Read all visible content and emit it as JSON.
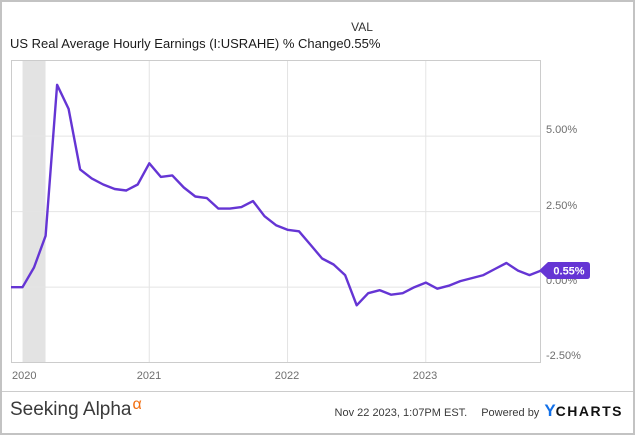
{
  "header": {
    "title": "US Real Average Hourly Earnings (I:USRAHE) % Change",
    "val_label": "VAL",
    "val_value": "0.55%"
  },
  "chart_data": {
    "type": "line",
    "title": "US Real Average Hourly Earnings (I:USRAHE) % Change",
    "ylabel": "",
    "xlabel": "",
    "unit": "%",
    "grid": true,
    "legend_position": "none",
    "line_color": "#6535d4",
    "recession_band": {
      "from": "2020-02",
      "to": "2020-04",
      "from_index": 1,
      "to_index": 3,
      "color": "#e3e3e3"
    },
    "ylim": [
      -2.51,
      7.52
    ],
    "yticks": [
      {
        "value": 5.0,
        "label": "5.00%"
      },
      {
        "value": 2.5,
        "label": "2.50%"
      },
      {
        "value": 0.0,
        "label": "0.00%"
      },
      {
        "value": -2.5,
        "label": "-2.50%"
      }
    ],
    "xticks": [
      {
        "index": 0,
        "label": "2020"
      },
      {
        "index": 12,
        "label": "2021"
      },
      {
        "index": 24,
        "label": "2022"
      },
      {
        "index": 36,
        "label": "2023"
      }
    ],
    "x": [
      "2019-12",
      "2020-01",
      "2020-02",
      "2020-03",
      "2020-04",
      "2020-05",
      "2020-06",
      "2020-07",
      "2020-08",
      "2020-09",
      "2020-10",
      "2020-11",
      "2020-12",
      "2021-01",
      "2021-02",
      "2021-03",
      "2021-04",
      "2021-05",
      "2021-06",
      "2021-07",
      "2021-08",
      "2021-09",
      "2021-10",
      "2021-11",
      "2021-12",
      "2022-01",
      "2022-02",
      "2022-03",
      "2022-04",
      "2022-05",
      "2022-06",
      "2022-07",
      "2022-08",
      "2022-09",
      "2022-10",
      "2022-11",
      "2022-12",
      "2023-01",
      "2023-02",
      "2023-03",
      "2023-04",
      "2023-05",
      "2023-06",
      "2023-07",
      "2023-08",
      "2023-09",
      "2023-10"
    ],
    "values": [
      0.0,
      0.0,
      0.65,
      1.7,
      6.7,
      5.9,
      3.9,
      3.6,
      3.4,
      3.25,
      3.2,
      3.4,
      4.1,
      3.65,
      3.7,
      3.3,
      3.0,
      2.95,
      2.6,
      2.6,
      2.65,
      2.85,
      2.35,
      2.05,
      1.9,
      1.85,
      1.4,
      0.95,
      0.75,
      0.4,
      -0.6,
      -0.2,
      -0.1,
      -0.25,
      -0.2,
      0.0,
      0.15,
      -0.05,
      0.05,
      0.2,
      0.3,
      0.4,
      0.6,
      0.8,
      0.55,
      0.4,
      0.55
    ],
    "last_value_badge": {
      "text": "0.55%",
      "color": "#6535d4"
    }
  },
  "footer": {
    "brand": "Seeking Alpha",
    "brand_alpha_symbol": "α",
    "timestamp": "Nov 22 2023, 1:07PM EST.",
    "powered_by": "Powered by",
    "logo_y": "Y",
    "logo_charts": "CHARTS"
  },
  "colors": {
    "line": "#6535d4",
    "badge": "#6535d4",
    "gridline": "#e4e4e4",
    "plot_border": "#cccccc",
    "recession_band": "#e3e3e3",
    "axis_text": "#6e6e6e",
    "logo_blue": "#1270e8",
    "alpha_orange": "#f26c0d"
  }
}
